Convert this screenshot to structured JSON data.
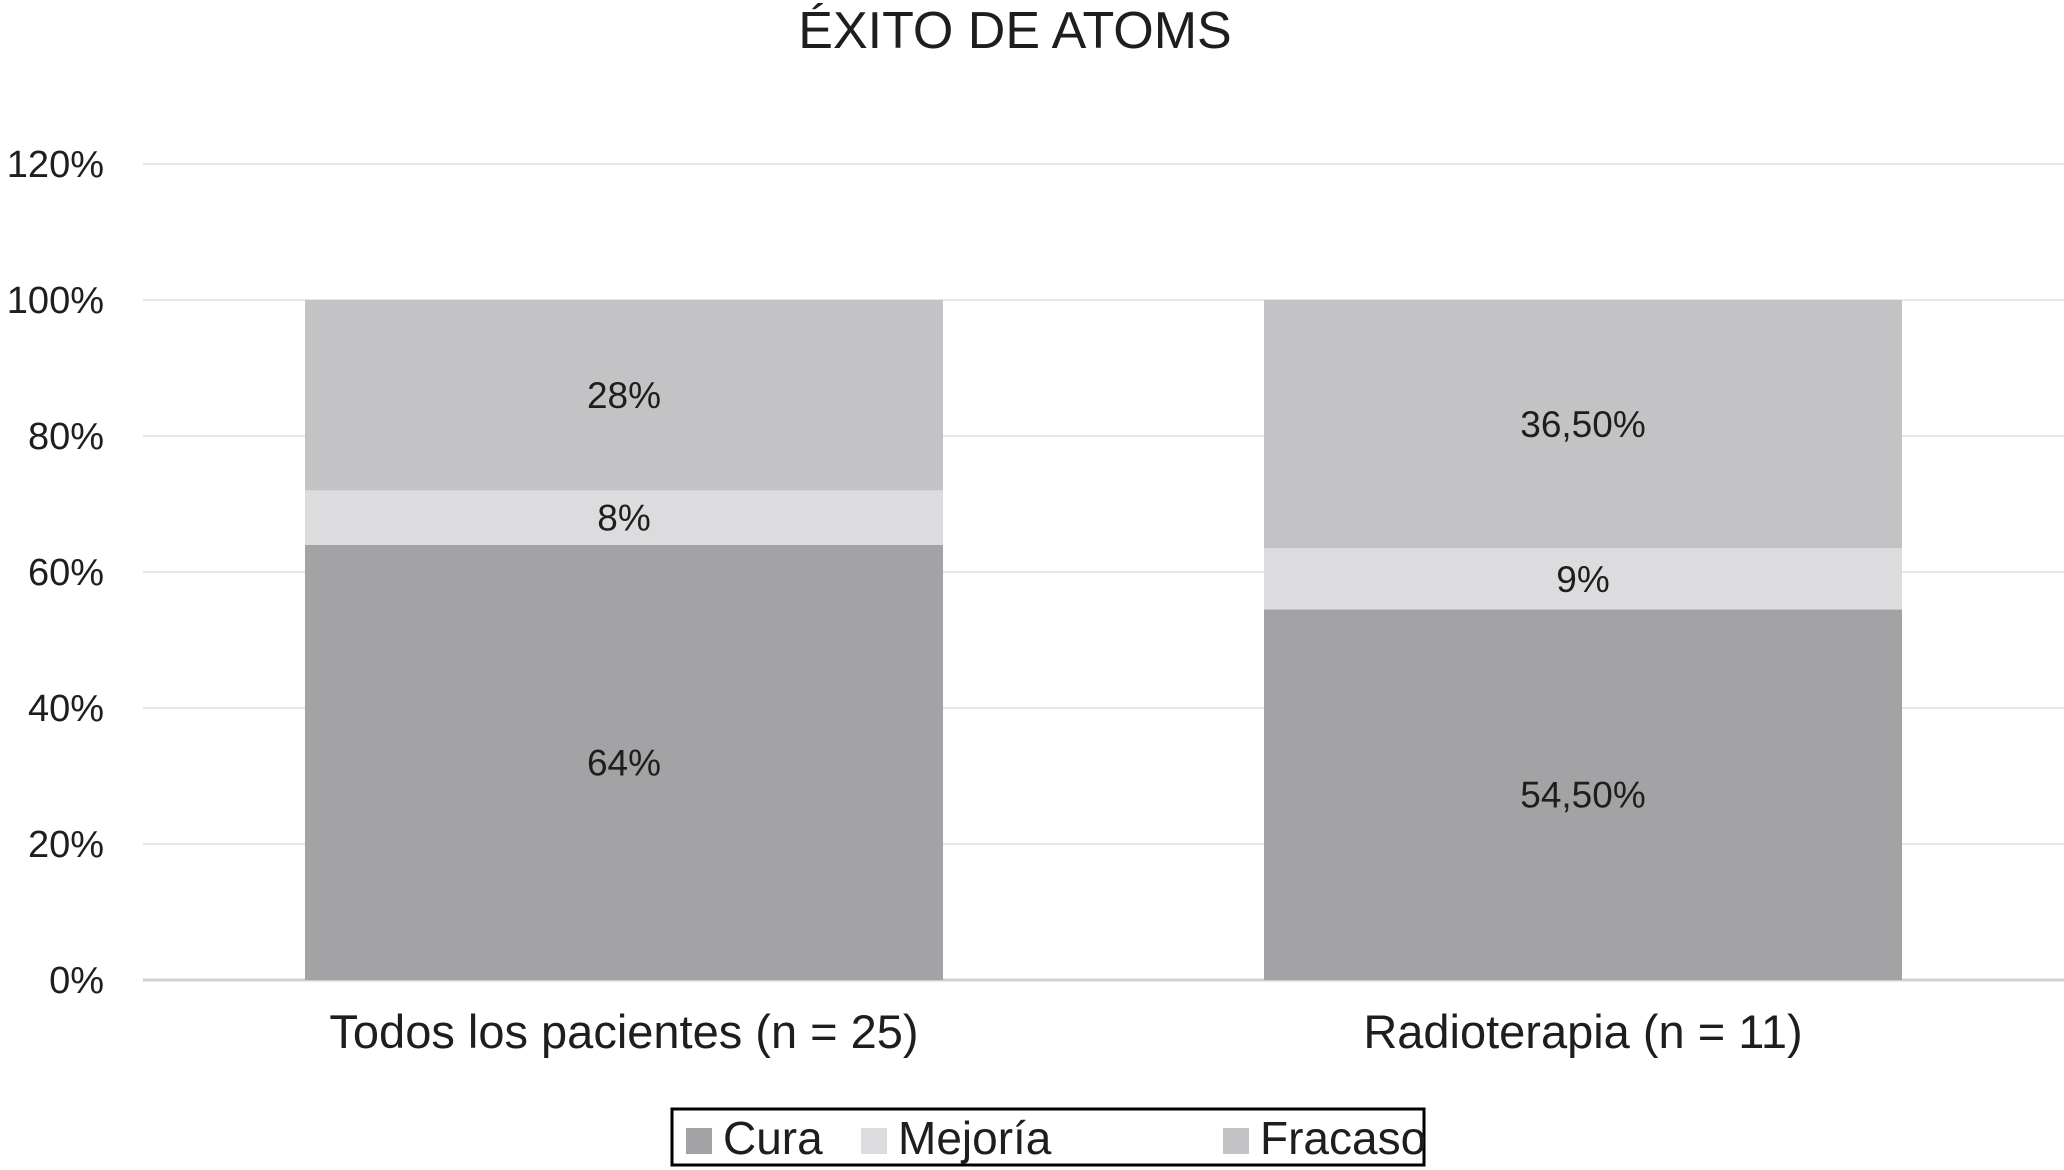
{
  "chart_data": {
    "type": "bar",
    "stacked": true,
    "title": "ÉXITO DE ATOMS",
    "categories": [
      "Todos los pacientes (n = 25)",
      "Radioterapia (n = 11)"
    ],
    "series": [
      {
        "name": "Cura",
        "values": [
          64,
          54.5
        ],
        "labels": [
          "64%",
          "54,50%"
        ],
        "color": "#a3a3a6"
      },
      {
        "name": "Mejoría",
        "values": [
          8,
          9
        ],
        "labels": [
          "8%",
          "9%"
        ],
        "color": "#dcdcde"
      },
      {
        "name": "Fracaso",
        "values": [
          28,
          36.5
        ],
        "labels": [
          "28%",
          "36,50%"
        ],
        "color": "#c3c3c6"
      }
    ],
    "ylim": [
      0,
      120
    ],
    "yticks": [
      0,
      20,
      40,
      60,
      80,
      100,
      120
    ],
    "ytick_labels": [
      "0%",
      "20%",
      "40%",
      "60%",
      "80%",
      "100%",
      "120%"
    ],
    "xlabel": "",
    "ylabel": "",
    "grid": true,
    "legend_position": "bottom"
  }
}
